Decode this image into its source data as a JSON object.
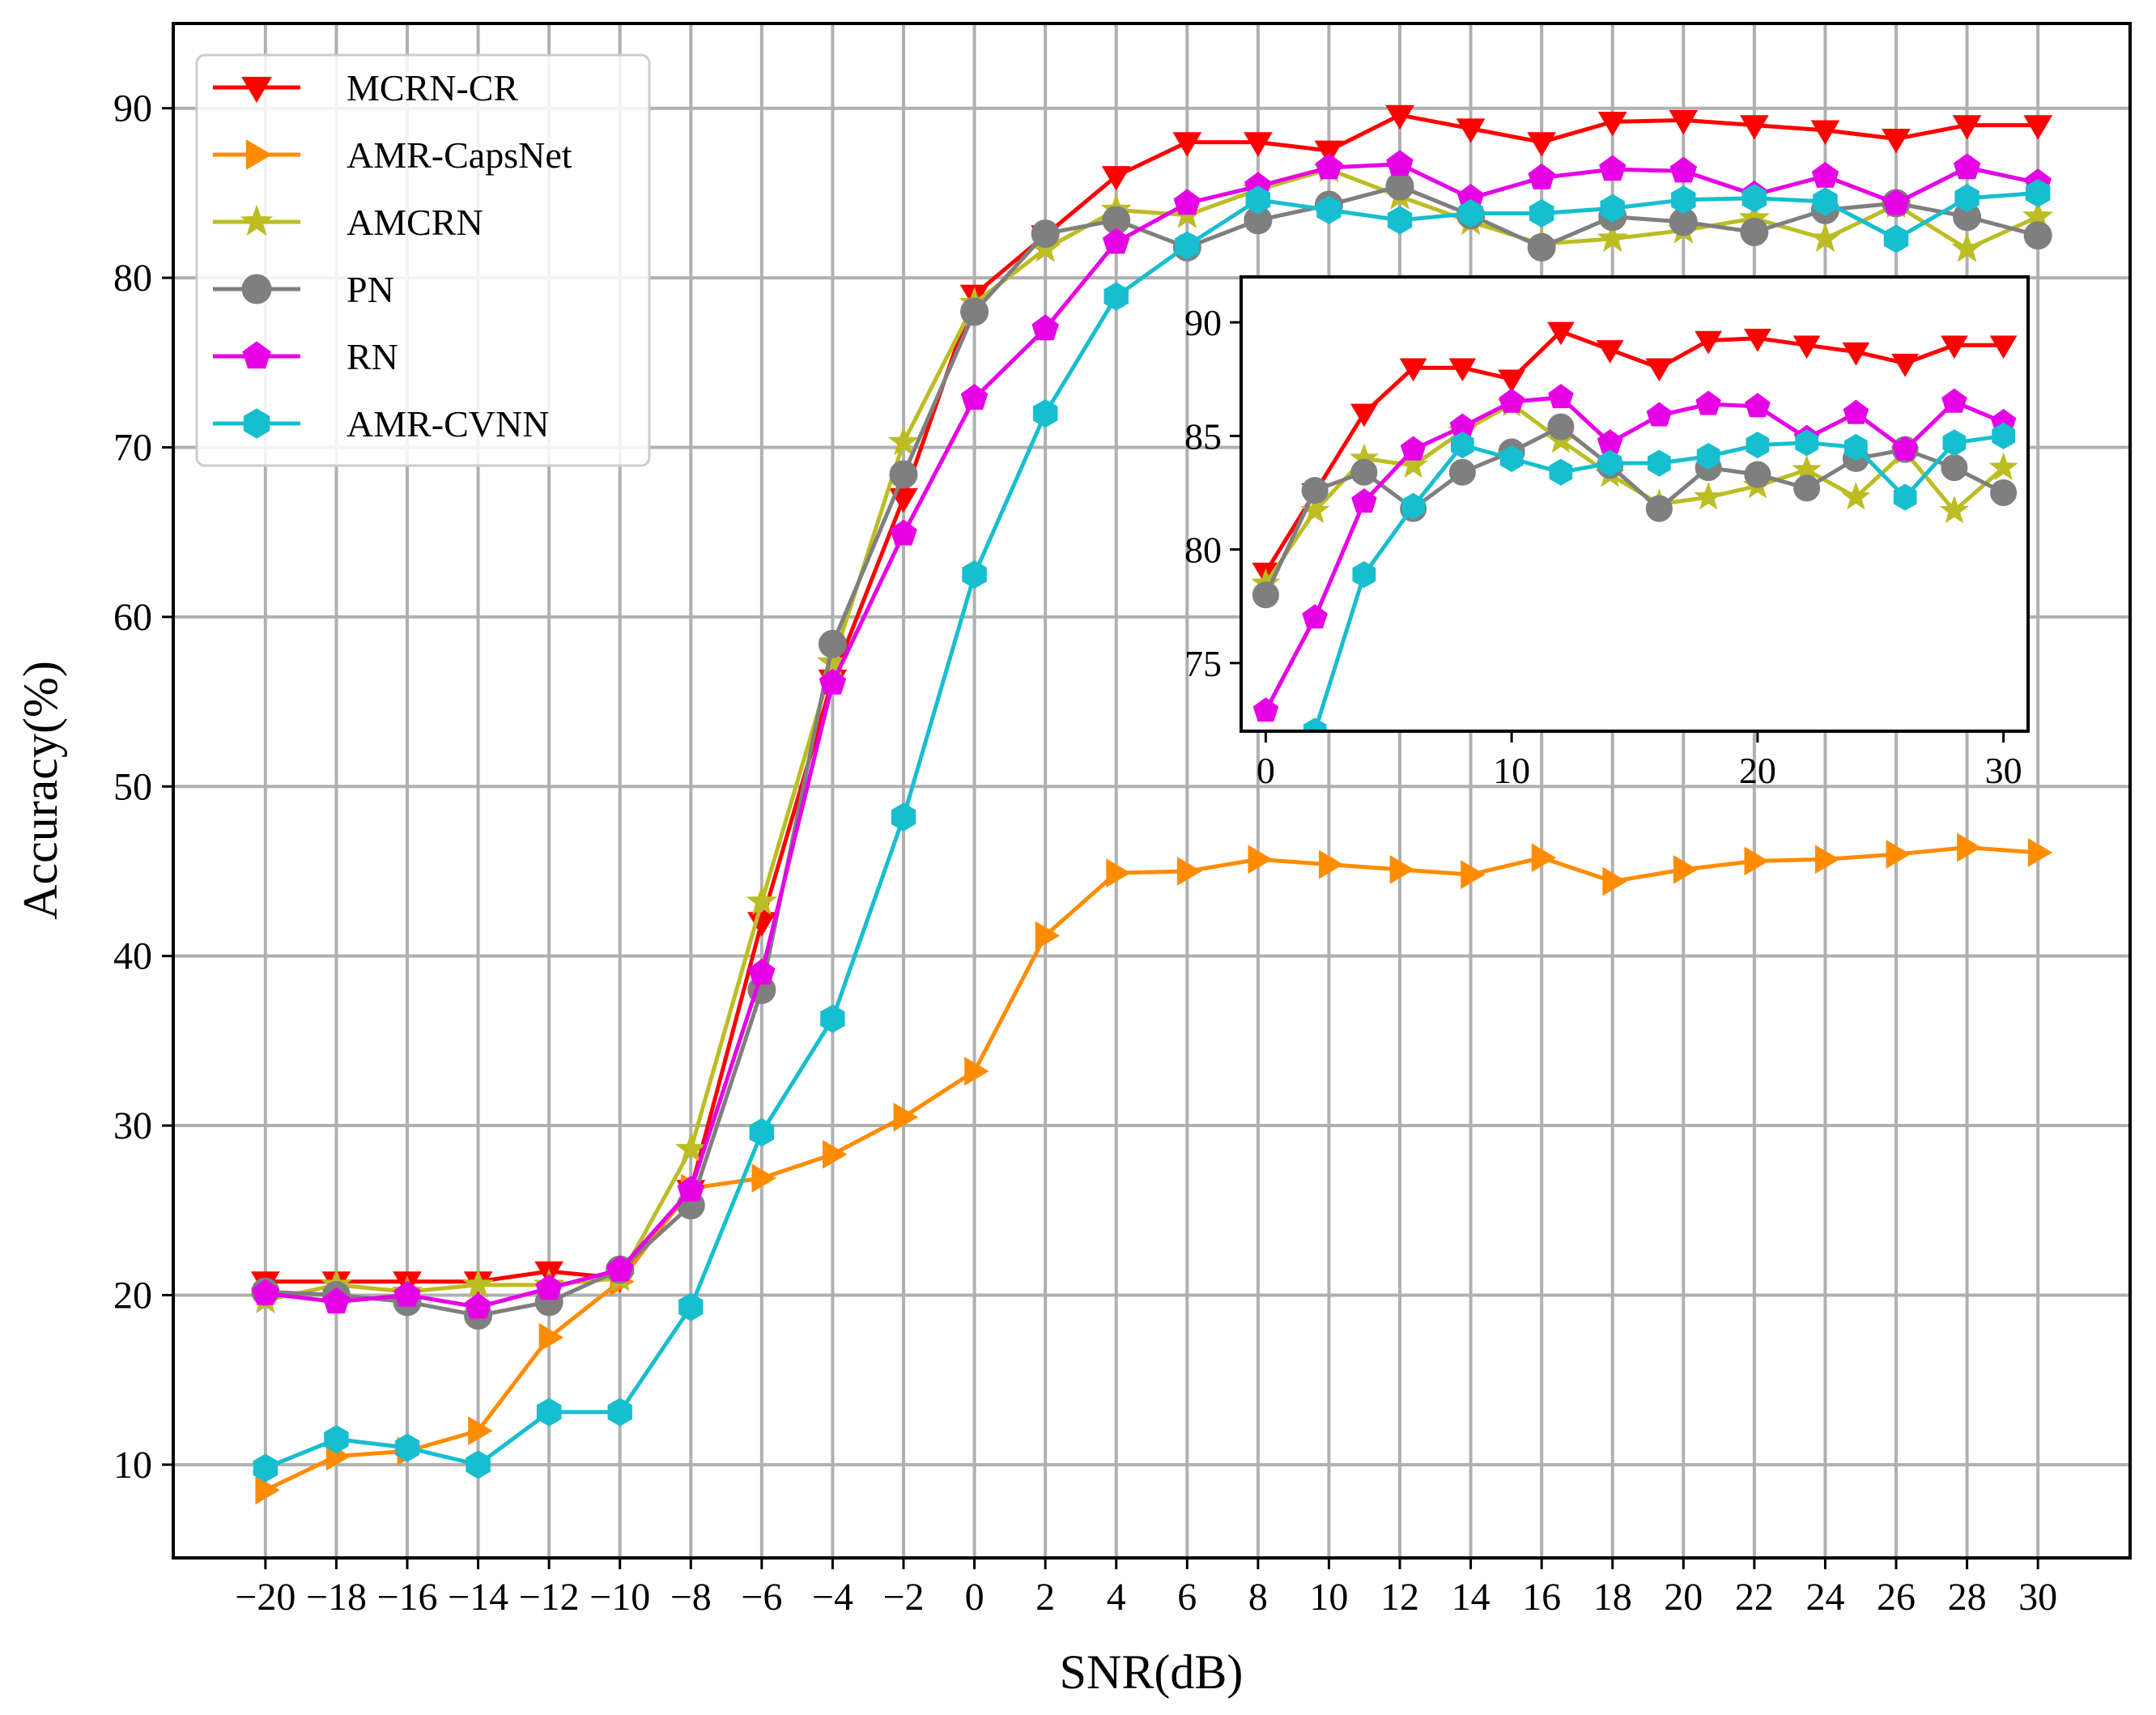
{
  "chart_data": {
    "type": "line",
    "xlabel": "SNR(dB)",
    "ylabel": "Accuracy(%)",
    "xlim": [
      -22.6,
      32.6
    ],
    "ylim": [
      4.5,
      95
    ],
    "grid": true,
    "legend_position": "top-left",
    "x": [
      -20,
      -18,
      -16,
      -14,
      -12,
      -10,
      -8,
      -6,
      -4,
      -2,
      0,
      2,
      4,
      6,
      8,
      10,
      12,
      14,
      16,
      18,
      20,
      22,
      24,
      26,
      28,
      30
    ],
    "x_tick_labels": [
      "−20",
      "−18",
      "−16",
      "−14",
      "−12",
      "−10",
      "−8",
      "−6",
      "−4",
      "−2",
      "0",
      "2",
      "4",
      "6",
      "8",
      "10",
      "12",
      "14",
      "16",
      "18",
      "20",
      "22",
      "24",
      "26",
      "28",
      "30"
    ],
    "y_ticks": [
      10,
      20,
      30,
      40,
      50,
      60,
      70,
      80,
      90
    ],
    "y_tick_labels": [
      "10",
      "20",
      "30",
      "40",
      "50",
      "60",
      "70",
      "80",
      "90"
    ],
    "series": [
      {
        "name": "MCRN-CR",
        "color": "#ff0000",
        "marker": "triangle-down",
        "values": [
          20.8,
          20.8,
          20.8,
          20.8,
          21.4,
          21.0,
          26.2,
          42.0,
          56.3,
          67.0,
          79.0,
          82.5,
          86.0,
          88.0,
          88.0,
          87.5,
          89.6,
          88.8,
          88.0,
          89.2,
          89.3,
          89.0,
          88.7,
          88.2,
          89.0,
          89.0
        ]
      },
      {
        "name": "AMR-CapsNet",
        "color": "#ff8c00",
        "marker": "triangle-right",
        "values": [
          8.5,
          10.5,
          10.8,
          12.0,
          17.5,
          20.8,
          26.3,
          26.9,
          28.3,
          30.5,
          33.2,
          41.2,
          44.9,
          45.0,
          45.7,
          45.4,
          45.1,
          44.8,
          45.8,
          44.4,
          45.1,
          45.6,
          45.7,
          46.0,
          46.4,
          46.1
        ]
      },
      {
        "name": "AMCRN",
        "color": "#bcbd22",
        "marker": "star",
        "values": [
          19.7,
          20.6,
          20.2,
          20.6,
          20.6,
          21.0,
          28.6,
          43.2,
          57.3,
          70.3,
          78.5,
          81.7,
          84.0,
          83.7,
          85.2,
          86.4,
          84.8,
          83.3,
          82.0,
          82.3,
          82.8,
          83.5,
          82.3,
          84.3,
          81.7,
          83.6
        ]
      },
      {
        "name": "PN",
        "color": "#7f7f7f",
        "marker": "circle",
        "values": [
          20.2,
          20.0,
          19.6,
          18.8,
          19.6,
          21.5,
          25.3,
          38.0,
          58.4,
          68.4,
          78.0,
          82.6,
          83.4,
          81.8,
          83.4,
          84.3,
          85.4,
          83.7,
          81.8,
          83.6,
          83.3,
          82.7,
          84.0,
          84.4,
          83.6,
          82.5
        ]
      },
      {
        "name": "RN",
        "color": "#e600e6",
        "marker": "pentagon",
        "values": [
          20.1,
          19.6,
          20.0,
          19.3,
          20.4,
          21.5,
          26.2,
          39.0,
          56.1,
          64.9,
          72.9,
          77.0,
          82.1,
          84.4,
          85.4,
          86.5,
          86.7,
          84.7,
          85.9,
          86.4,
          86.3,
          84.9,
          86.0,
          84.4,
          86.5,
          85.6
        ]
      },
      {
        "name": "AMR-CVNN",
        "color": "#17becf",
        "marker": "hexagon",
        "values": [
          9.8,
          11.5,
          11.0,
          10.0,
          13.1,
          13.1,
          19.3,
          29.6,
          36.3,
          48.2,
          62.5,
          72.0,
          78.9,
          81.9,
          84.6,
          84.0,
          83.4,
          83.8,
          83.8,
          84.1,
          84.6,
          84.7,
          84.5,
          82.3,
          84.7,
          85.0
        ]
      }
    ],
    "inset": {
      "x_range": [
        -1,
        31
      ],
      "y_range": [
        72,
        92
      ],
      "x_ticks": [
        0,
        10,
        20,
        30
      ],
      "x_tick_labels": [
        "0",
        "10",
        "20",
        "30"
      ],
      "y_ticks": [
        75,
        80,
        85,
        90
      ],
      "y_tick_labels": [
        "75",
        "80",
        "85",
        "90"
      ]
    }
  }
}
